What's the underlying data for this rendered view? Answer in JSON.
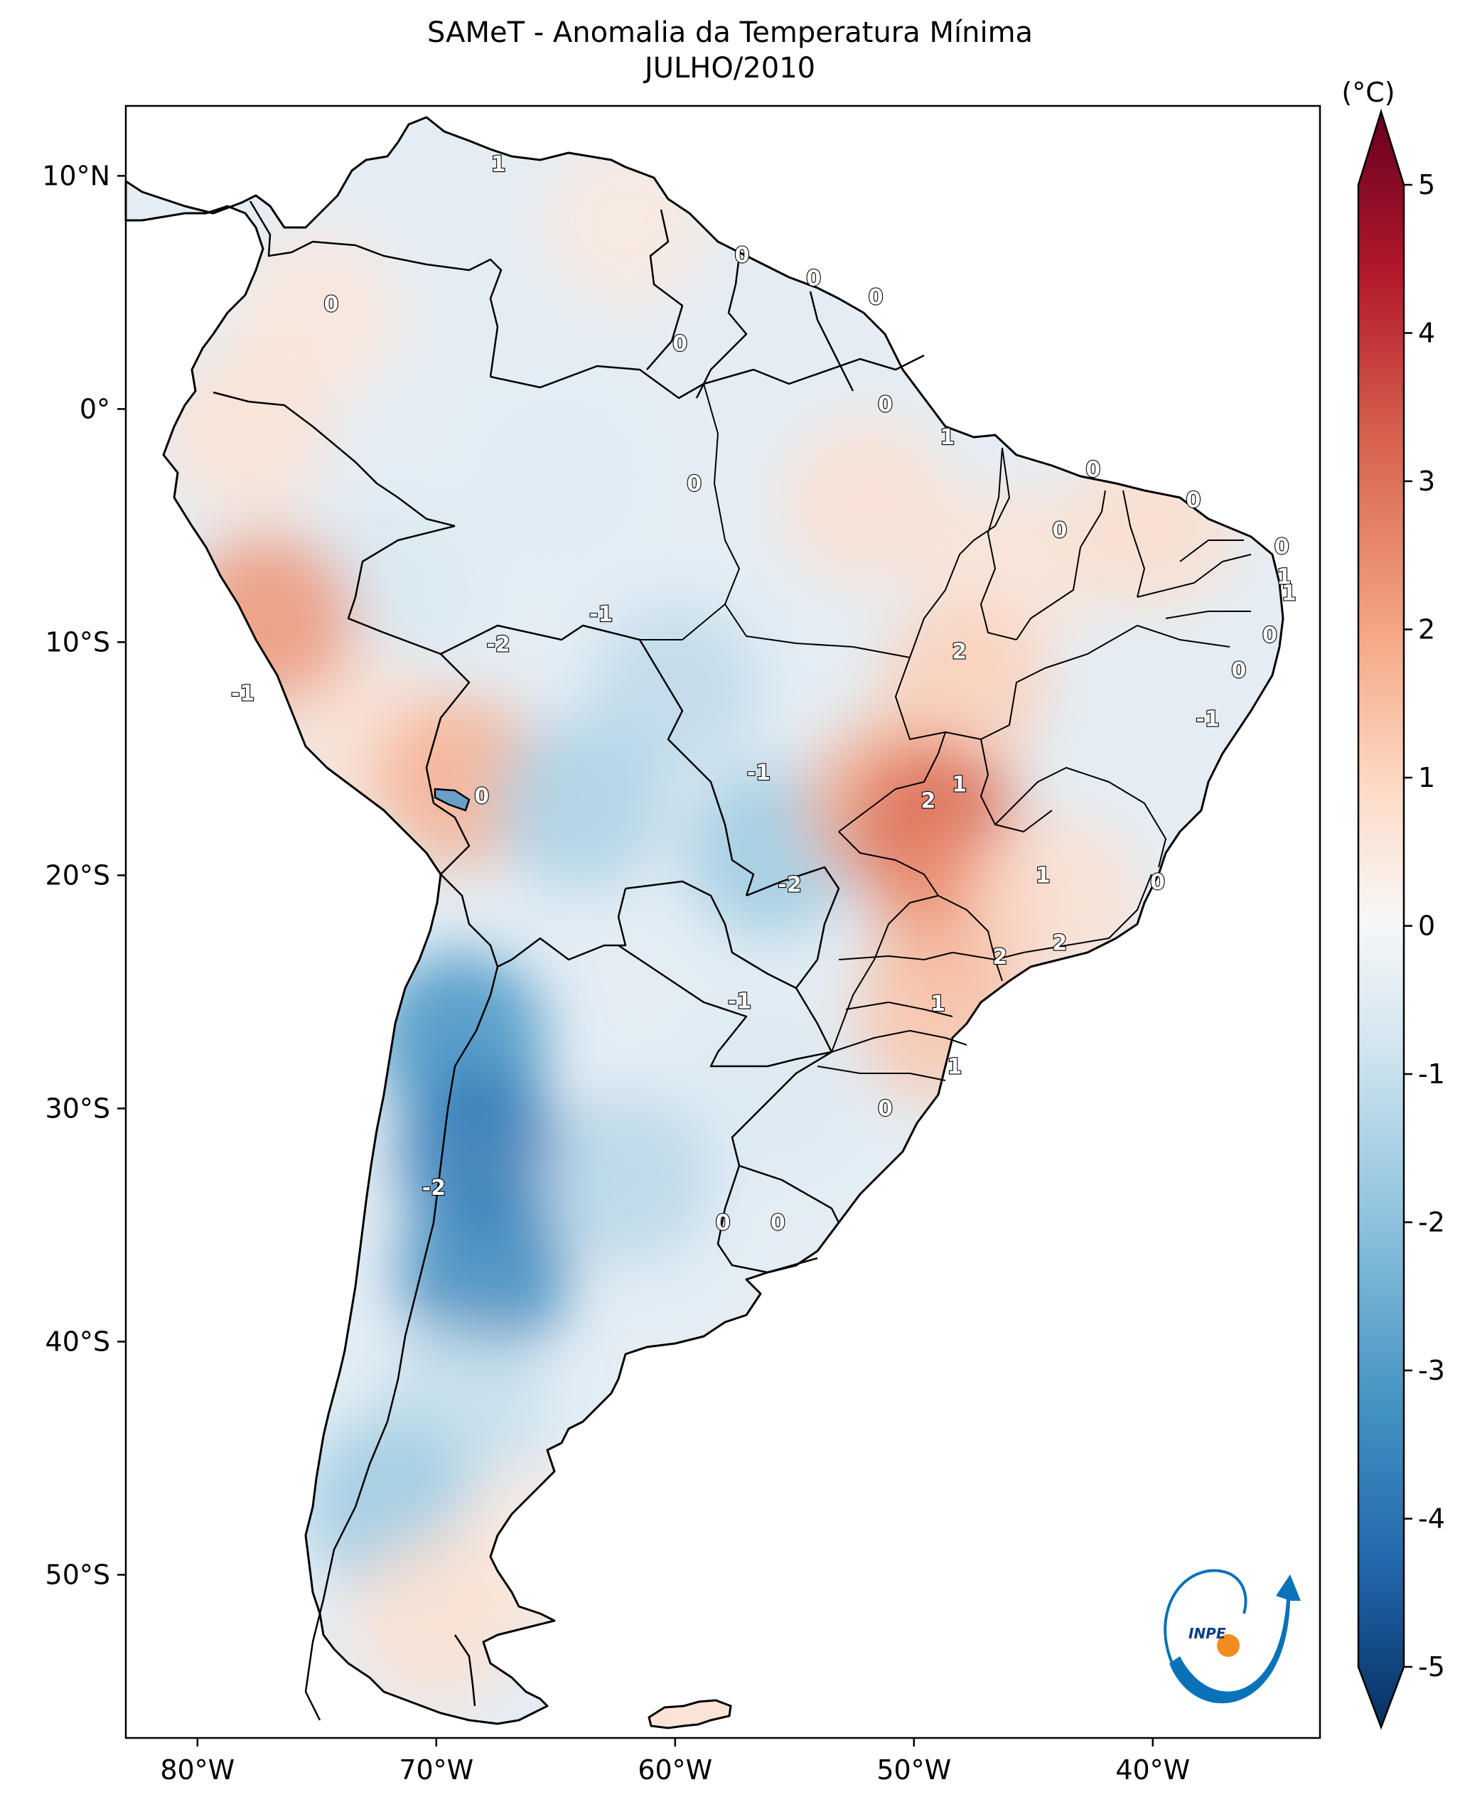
{
  "title_line1": "SAMeT - Anomalia da Temperatura Mínima",
  "title_line2": "JULHO/2010",
  "chart_data": {
    "type": "heatmap",
    "title": "SAMeT - Anomalia da Temperatura Mínima JULHO/2010",
    "variable": "Anomalia da Temperatura Mínima",
    "units": "(°C)",
    "lon_range": [
      -83,
      -33
    ],
    "lat_range": [
      -57,
      13
    ],
    "x_ticks": [
      {
        "value": -80,
        "label": "80°W"
      },
      {
        "value": -70,
        "label": "70°W"
      },
      {
        "value": -60,
        "label": "60°W"
      },
      {
        "value": -50,
        "label": "50°W"
      },
      {
        "value": -40,
        "label": "40°W"
      }
    ],
    "y_ticks": [
      {
        "value": 10,
        "label": "10°N"
      },
      {
        "value": 0,
        "label": "0°"
      },
      {
        "value": -10,
        "label": "10°S"
      },
      {
        "value": -20,
        "label": "20°S"
      },
      {
        "value": -30,
        "label": "30°S"
      },
      {
        "value": -40,
        "label": "40°S"
      },
      {
        "value": -50,
        "label": "50°S"
      }
    ],
    "colorbar": {
      "label": "(°C)",
      "range": [
        -5,
        5
      ],
      "ticks": [
        {
          "value": 5,
          "label": "5"
        },
        {
          "value": 4,
          "label": "4"
        },
        {
          "value": 3,
          "label": "3"
        },
        {
          "value": 2,
          "label": "2"
        },
        {
          "value": 1,
          "label": "1"
        },
        {
          "value": 0,
          "label": "0"
        },
        {
          "value": -1,
          "label": "-1"
        },
        {
          "value": -2,
          "label": "-2"
        },
        {
          "value": -3,
          "label": "-3"
        },
        {
          "value": -4,
          "label": "-4"
        },
        {
          "value": -5,
          "label": "-5"
        }
      ],
      "colors": [
        "#053061",
        "#2166ac",
        "#4393c3",
        "#92c5de",
        "#d1e5f0",
        "#f7f7f7",
        "#fddbc7",
        "#f4a582",
        "#d6604d",
        "#b2182b",
        "#67001f"
      ]
    },
    "anomaly_blobs": [
      {
        "lon": -62,
        "lat": 8,
        "value": 0.5
      },
      {
        "lon": -75,
        "lat": 4,
        "value": 0.6
      },
      {
        "lon": -78,
        "lat": -1,
        "value": 0.7
      },
      {
        "lon": -65,
        "lat": -3,
        "value": -0.6
      },
      {
        "lon": -72,
        "lat": -8,
        "value": -0.8
      },
      {
        "lon": -73,
        "lat": -14,
        "value": 0.8
      },
      {
        "lon": -69,
        "lat": -16,
        "value": 1.8
      },
      {
        "lon": -77,
        "lat": -9,
        "value": 2.2
      },
      {
        "lon": -60,
        "lat": -12,
        "value": -1.3
      },
      {
        "lon": -64,
        "lat": -17,
        "value": -1.6
      },
      {
        "lon": -56,
        "lat": -19,
        "value": -1.8
      },
      {
        "lon": -52,
        "lat": -4,
        "value": 0.8
      },
      {
        "lon": -46,
        "lat": -7,
        "value": 0.7
      },
      {
        "lon": -40,
        "lat": -5,
        "value": 0.9
      },
      {
        "lon": -48,
        "lat": -12,
        "value": 1.2
      },
      {
        "lon": -51,
        "lat": -17,
        "value": 1.8
      },
      {
        "lon": -49,
        "lat": -18,
        "value": 2.8
      },
      {
        "lon": -48,
        "lat": -22,
        "value": 2.2
      },
      {
        "lon": -44,
        "lat": -21,
        "value": 0.8
      },
      {
        "lon": -49,
        "lat": -26,
        "value": 1.4
      },
      {
        "lon": -69,
        "lat": -27,
        "value": -3.0
      },
      {
        "lon": -68,
        "lat": -32,
        "value": -3.6
      },
      {
        "lon": -68,
        "lat": -37,
        "value": -3.2
      },
      {
        "lon": -62,
        "lat": -33,
        "value": -1.4
      },
      {
        "lon": -56,
        "lat": -29,
        "value": -0.7
      },
      {
        "lon": -69,
        "lat": -43,
        "value": -1.2
      },
      {
        "lon": -72,
        "lat": -47,
        "value": -1.8
      },
      {
        "lon": -66,
        "lat": -49,
        "value": 0.5
      },
      {
        "lon": -70,
        "lat": -52,
        "value": 0.8
      }
    ],
    "contour_labels": [
      {
        "lon": -67.4,
        "lat": 10.5,
        "text": "1"
      },
      {
        "lon": -74.4,
        "lat": 4.5,
        "text": "0"
      },
      {
        "lon": -57.2,
        "lat": 6.6,
        "text": "0"
      },
      {
        "lon": -54.2,
        "lat": 5.6,
        "text": "0"
      },
      {
        "lon": -51.6,
        "lat": 4.8,
        "text": "0"
      },
      {
        "lon": -59.8,
        "lat": 2.8,
        "text": "0"
      },
      {
        "lon": -51.2,
        "lat": 0.2,
        "text": "0"
      },
      {
        "lon": -48.6,
        "lat": -1.2,
        "text": "1"
      },
      {
        "lon": -42.5,
        "lat": -2.6,
        "text": "0"
      },
      {
        "lon": -59.2,
        "lat": -3.2,
        "text": "0"
      },
      {
        "lon": -38.3,
        "lat": -3.9,
        "text": "0"
      },
      {
        "lon": -43.9,
        "lat": -5.2,
        "text": "0"
      },
      {
        "lon": -34.6,
        "lat": -5.9,
        "text": "0"
      },
      {
        "lon": -34.5,
        "lat": -7.2,
        "text": "1"
      },
      {
        "lon": -34.3,
        "lat": -7.9,
        "text": "1"
      },
      {
        "lon": -35.1,
        "lat": -9.7,
        "text": "0"
      },
      {
        "lon": -36.4,
        "lat": -11.2,
        "text": "0"
      },
      {
        "lon": -37.7,
        "lat": -13.3,
        "text": "-1"
      },
      {
        "lon": -48.1,
        "lat": -10.4,
        "text": "2"
      },
      {
        "lon": -78.1,
        "lat": -12.2,
        "text": "-1"
      },
      {
        "lon": -63.1,
        "lat": -8.8,
        "text": "-1"
      },
      {
        "lon": -67.4,
        "lat": -10.1,
        "text": "-2"
      },
      {
        "lon": -56.5,
        "lat": -15.6,
        "text": "-1"
      },
      {
        "lon": -48.1,
        "lat": -16.1,
        "text": "1"
      },
      {
        "lon": -49.4,
        "lat": -16.8,
        "text": "2"
      },
      {
        "lon": -68.1,
        "lat": -16.6,
        "text": "0"
      },
      {
        "lon": -55.2,
        "lat": -20.4,
        "text": "-2"
      },
      {
        "lon": -44.6,
        "lat": -20.0,
        "text": "1"
      },
      {
        "lon": -39.8,
        "lat": -20.3,
        "text": "0"
      },
      {
        "lon": -43.9,
        "lat": -22.9,
        "text": "2"
      },
      {
        "lon": -46.4,
        "lat": -23.5,
        "text": "2"
      },
      {
        "lon": -57.3,
        "lat": -25.4,
        "text": "-1"
      },
      {
        "lon": -49.0,
        "lat": -25.5,
        "text": "1"
      },
      {
        "lon": -48.3,
        "lat": -28.2,
        "text": "1"
      },
      {
        "lon": -51.2,
        "lat": -30.0,
        "text": "0"
      },
      {
        "lon": -70.1,
        "lat": -33.4,
        "text": "-2"
      },
      {
        "lon": -58.0,
        "lat": -34.9,
        "text": "0"
      },
      {
        "lon": -55.7,
        "lat": -34.9,
        "text": "0"
      }
    ]
  },
  "logo_text": "INPE"
}
